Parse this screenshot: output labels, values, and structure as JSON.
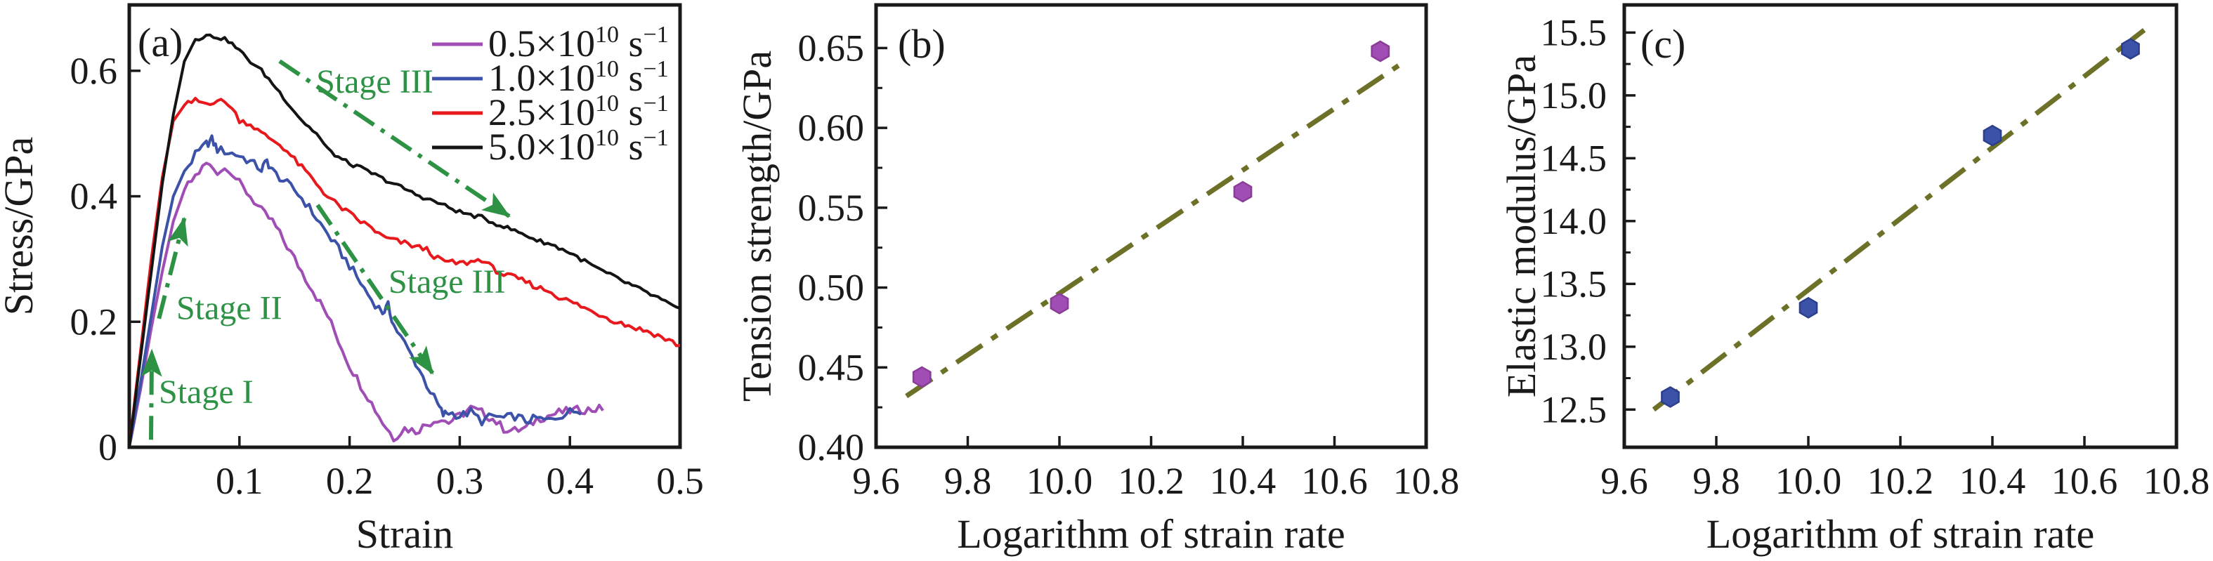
{
  "figure": {
    "description": "Three-panel materials figure: stress-strain curves at four strain rates, tension strength vs logarithm of strain rate, elastic modulus vs logarithm of strain rate",
    "text_color": "#1a1a1a",
    "annotation_color": "#2E9245",
    "fit_line_color": "#6D7127"
  },
  "chart_data": [
    {
      "id": "a",
      "type": "line",
      "panel_label": "(a)",
      "xlabel": "Strain",
      "ylabel": "Stress/GPa",
      "xlim": [
        0,
        0.5
      ],
      "ylim": [
        0,
        0.705
      ],
      "xtick_values": [
        0.1,
        0.2,
        0.3,
        0.4,
        0.5
      ],
      "xtick_labels": [
        "0.1",
        "0.2",
        "0.3",
        "0.4",
        "0.5"
      ],
      "ytick_values": [
        0,
        0.2,
        0.4,
        0.6
      ],
      "ytick_labels": [
        "0",
        "0.2",
        "0.4",
        "0.6"
      ],
      "grid": false,
      "legend_position": "top-right",
      "series": [
        {
          "name": "0.5e10 per s",
          "color": "#A04DB5",
          "legend_base": "0.5×10",
          "legend_exp": "10",
          "legend_unit": " s",
          "legend_unit_exp": "−1",
          "points": [
            [
              0,
              0
            ],
            [
              0.01,
              0.09
            ],
            [
              0.02,
              0.19
            ],
            [
              0.03,
              0.28
            ],
            [
              0.04,
              0.36
            ],
            [
              0.05,
              0.41
            ],
            [
              0.06,
              0.432
            ],
            [
              0.07,
              0.452
            ],
            [
              0.08,
              0.44
            ],
            [
              0.09,
              0.446
            ],
            [
              0.1,
              0.42
            ],
            [
              0.11,
              0.4
            ],
            [
              0.12,
              0.376
            ],
            [
              0.13,
              0.36
            ],
            [
              0.14,
              0.33
            ],
            [
              0.15,
              0.3
            ],
            [
              0.16,
              0.27
            ],
            [
              0.17,
              0.24
            ],
            [
              0.18,
              0.21
            ],
            [
              0.19,
              0.17
            ],
            [
              0.2,
              0.13
            ],
            [
              0.21,
              0.1
            ],
            [
              0.22,
              0.07
            ],
            [
              0.23,
              0.04
            ],
            [
              0.24,
              0.015
            ],
            [
              0.25,
              0.03
            ],
            [
              0.26,
              0.026
            ],
            [
              0.27,
              0.036
            ],
            [
              0.28,
              0.046
            ],
            [
              0.29,
              0.04
            ],
            [
              0.3,
              0.05
            ],
            [
              0.31,
              0.062
            ],
            [
              0.32,
              0.055
            ],
            [
              0.33,
              0.045
            ],
            [
              0.34,
              0.03
            ],
            [
              0.35,
              0.026
            ],
            [
              0.36,
              0.03
            ],
            [
              0.37,
              0.045
            ],
            [
              0.38,
              0.05
            ],
            [
              0.39,
              0.055
            ],
            [
              0.4,
              0.058
            ],
            [
              0.41,
              0.06
            ],
            [
              0.42,
              0.06
            ],
            [
              0.43,
              0.062
            ]
          ]
        },
        {
          "name": "1.0e10 per s",
          "color": "#3B52A8",
          "legend_base": "1.0×10",
          "legend_exp": "10",
          "legend_unit": " s",
          "legend_unit_exp": "−1",
          "points": [
            [
              0,
              0
            ],
            [
              0.01,
              0.1
            ],
            [
              0.02,
              0.21
            ],
            [
              0.03,
              0.32
            ],
            [
              0.04,
              0.4
            ],
            [
              0.05,
              0.44
            ],
            [
              0.06,
              0.465
            ],
            [
              0.07,
              0.483
            ],
            [
              0.075,
              0.49
            ],
            [
              0.08,
              0.475
            ],
            [
              0.09,
              0.47
            ],
            [
              0.1,
              0.465
            ],
            [
              0.11,
              0.455
            ],
            [
              0.12,
              0.443
            ],
            [
              0.125,
              0.456
            ],
            [
              0.13,
              0.44
            ],
            [
              0.14,
              0.425
            ],
            [
              0.15,
              0.41
            ],
            [
              0.16,
              0.39
            ],
            [
              0.17,
              0.365
            ],
            [
              0.18,
              0.34
            ],
            [
              0.19,
              0.315
            ],
            [
              0.2,
              0.29
            ],
            [
              0.21,
              0.262
            ],
            [
              0.22,
              0.235
            ],
            [
              0.23,
              0.215
            ],
            [
              0.235,
              0.225
            ],
            [
              0.24,
              0.195
            ],
            [
              0.25,
              0.165
            ],
            [
              0.26,
              0.135
            ],
            [
              0.27,
              0.1
            ],
            [
              0.28,
              0.068
            ],
            [
              0.285,
              0.052
            ],
            [
              0.29,
              0.056
            ],
            [
              0.3,
              0.05
            ],
            [
              0.31,
              0.056
            ],
            [
              0.32,
              0.042
            ],
            [
              0.33,
              0.05
            ],
            [
              0.34,
              0.046
            ],
            [
              0.35,
              0.05
            ],
            [
              0.36,
              0.042
            ],
            [
              0.37,
              0.046
            ],
            [
              0.38,
              0.042
            ],
            [
              0.39,
              0.05
            ],
            [
              0.4,
              0.056
            ],
            [
              0.41,
              0.06
            ]
          ]
        },
        {
          "name": "2.5e10 per s",
          "color": "#E8191D",
          "legend_base": "2.5×10",
          "legend_exp": "10",
          "legend_unit": " s",
          "legend_unit_exp": "−1",
          "points": [
            [
              0,
              0
            ],
            [
              0.01,
              0.15
            ],
            [
              0.02,
              0.3
            ],
            [
              0.03,
              0.43
            ],
            [
              0.04,
              0.52
            ],
            [
              0.05,
              0.545
            ],
            [
              0.06,
              0.552
            ],
            [
              0.07,
              0.548
            ],
            [
              0.08,
              0.553
            ],
            [
              0.09,
              0.548
            ],
            [
              0.1,
              0.522
            ],
            [
              0.11,
              0.515
            ],
            [
              0.12,
              0.5
            ],
            [
              0.13,
              0.49
            ],
            [
              0.14,
              0.478
            ],
            [
              0.15,
              0.458
            ],
            [
              0.16,
              0.44
            ],
            [
              0.17,
              0.42
            ],
            [
              0.18,
              0.4
            ],
            [
              0.19,
              0.385
            ],
            [
              0.2,
              0.372
            ],
            [
              0.21,
              0.36
            ],
            [
              0.22,
              0.35
            ],
            [
              0.23,
              0.335
            ],
            [
              0.24,
              0.33
            ],
            [
              0.25,
              0.325
            ],
            [
              0.26,
              0.32
            ],
            [
              0.27,
              0.315
            ],
            [
              0.28,
              0.3
            ],
            [
              0.29,
              0.295
            ],
            [
              0.3,
              0.293
            ],
            [
              0.31,
              0.295
            ],
            [
              0.32,
              0.3
            ],
            [
              0.33,
              0.285
            ],
            [
              0.34,
              0.275
            ],
            [
              0.35,
              0.27
            ],
            [
              0.36,
              0.264
            ],
            [
              0.37,
              0.255
            ],
            [
              0.38,
              0.25
            ],
            [
              0.39,
              0.24
            ],
            [
              0.4,
              0.232
            ],
            [
              0.41,
              0.225
            ],
            [
              0.42,
              0.216
            ],
            [
              0.43,
              0.21
            ],
            [
              0.44,
              0.202
            ],
            [
              0.45,
              0.196
            ],
            [
              0.46,
              0.19
            ],
            [
              0.47,
              0.185
            ],
            [
              0.48,
              0.178
            ],
            [
              0.49,
              0.17
            ],
            [
              0.5,
              0.162
            ]
          ]
        },
        {
          "name": "5.0e10 per s",
          "color": "#141414",
          "legend_base": "5.0×10",
          "legend_exp": "10",
          "legend_unit": " s",
          "legend_unit_exp": "−1",
          "points": [
            [
              0,
              0
            ],
            [
              0.01,
              0.14
            ],
            [
              0.02,
              0.28
            ],
            [
              0.03,
              0.42
            ],
            [
              0.04,
              0.53
            ],
            [
              0.05,
              0.615
            ],
            [
              0.06,
              0.65
            ],
            [
              0.07,
              0.656
            ],
            [
              0.08,
              0.654
            ],
            [
              0.09,
              0.648
            ],
            [
              0.1,
              0.632
            ],
            [
              0.11,
              0.615
            ],
            [
              0.12,
              0.6
            ],
            [
              0.13,
              0.58
            ],
            [
              0.14,
              0.558
            ],
            [
              0.15,
              0.535
            ],
            [
              0.16,
              0.515
            ],
            [
              0.17,
              0.5
            ],
            [
              0.18,
              0.475
            ],
            [
              0.19,
              0.462
            ],
            [
              0.2,
              0.452
            ],
            [
              0.21,
              0.445
            ],
            [
              0.22,
              0.437
            ],
            [
              0.23,
              0.428
            ],
            [
              0.24,
              0.42
            ],
            [
              0.25,
              0.412
            ],
            [
              0.26,
              0.403
            ],
            [
              0.27,
              0.396
            ],
            [
              0.28,
              0.39
            ],
            [
              0.29,
              0.382
            ],
            [
              0.3,
              0.375
            ],
            [
              0.31,
              0.37
            ],
            [
              0.32,
              0.366
            ],
            [
              0.33,
              0.358
            ],
            [
              0.34,
              0.352
            ],
            [
              0.35,
              0.345
            ],
            [
              0.36,
              0.338
            ],
            [
              0.37,
              0.33
            ],
            [
              0.38,
              0.325
            ],
            [
              0.39,
              0.318
            ],
            [
              0.4,
              0.31
            ],
            [
              0.41,
              0.3
            ],
            [
              0.42,
              0.29
            ],
            [
              0.43,
              0.28
            ],
            [
              0.44,
              0.272
            ],
            [
              0.45,
              0.263
            ],
            [
              0.46,
              0.255
            ],
            [
              0.47,
              0.246
            ],
            [
              0.48,
              0.238
            ],
            [
              0.49,
              0.228
            ],
            [
              0.5,
              0.218
            ]
          ]
        }
      ],
      "annotations": [
        {
          "text": "Stage I",
          "text_at": [
            0.0268,
            0.0705
          ],
          "arrow": [
            [
              0.0198,
              0.012
            ],
            [
              0.0205,
              0.155
            ]
          ]
        },
        {
          "text": "Stage II",
          "text_at": [
            0.0427,
            0.204
          ],
          "arrow": [
            [
              0.027,
              0.205
            ],
            [
              0.05,
              0.365
            ]
          ]
        },
        {
          "text": "Stage III",
          "text_at": [
            0.1697,
            0.5651
          ],
          "arrow": [
            [
              0.1365,
              0.6154
            ],
            [
              0.345,
              0.3682
            ]
          ]
        },
        {
          "text": "Stage III",
          "text_at": [
            0.2353,
            0.2462
          ],
          "arrow": [
            [
              0.1709,
              0.3861
            ],
            [
              0.2755,
              0.1175
            ]
          ]
        }
      ]
    },
    {
      "id": "b",
      "type": "scatter",
      "panel_label": "(b)",
      "xlabel": "Logarithm of strain rate",
      "ylabel": "Tension strength/GPa",
      "xlim": [
        9.6,
        10.8
      ],
      "ylim": [
        0.4,
        0.677
      ],
      "xtick_values": [
        9.6,
        9.8,
        10.0,
        10.2,
        10.4,
        10.6,
        10.8
      ],
      "xtick_labels": [
        "9.6",
        "9.8",
        "10.0",
        "10.2",
        "10.4",
        "10.6",
        "10.8"
      ],
      "ytick_values": [
        0.4,
        0.45,
        0.5,
        0.55,
        0.6,
        0.65
      ],
      "ytick_labels": [
        "0.40",
        "0.45",
        "0.50",
        "0.55",
        "0.60",
        "0.65"
      ],
      "y_minor_step": 0.025,
      "grid": false,
      "marker": "hexagon",
      "marker_color": "#A04DB5",
      "marker_edge": "#8A3D96",
      "points": [
        [
          9.7,
          0.444
        ],
        [
          10.0,
          0.49
        ],
        [
          10.4,
          0.56
        ],
        [
          10.7,
          0.648
        ]
      ],
      "fit_line": {
        "style": "dash-dot",
        "color": "#6D7127",
        "from": [
          9.666,
          0.432
        ],
        "to": [
          10.75,
          0.641
        ]
      }
    },
    {
      "id": "c",
      "type": "scatter",
      "panel_label": "(c)",
      "xlabel": "Logarithm of strain rate",
      "ylabel": "Elastic modulus/GPa",
      "xlim": [
        9.6,
        10.8
      ],
      "ylim": [
        12.2,
        15.72
      ],
      "xtick_values": [
        9.6,
        9.8,
        10.0,
        10.2,
        10.4,
        10.6,
        10.8
      ],
      "xtick_labels": [
        "9.6",
        "9.8",
        "10.0",
        "10.2",
        "10.4",
        "10.6",
        "10.8"
      ],
      "ytick_values": [
        12.5,
        13.0,
        13.5,
        14.0,
        14.5,
        15.0,
        15.5
      ],
      "ytick_labels": [
        "12.5",
        "13.0",
        "13.5",
        "14.0",
        "14.5",
        "15.0",
        "15.5"
      ],
      "y_minor_step": 0.25,
      "grid": false,
      "marker": "hexagon",
      "marker_color": "#3B52A8",
      "marker_edge": "#2C3F8C",
      "points": [
        [
          9.7,
          12.6
        ],
        [
          10.0,
          13.31
        ],
        [
          10.4,
          14.68
        ],
        [
          10.7,
          15.37
        ]
      ],
      "fit_line": {
        "style": "dash-dot",
        "color": "#6D7127",
        "from": [
          9.664,
          12.5
        ],
        "to": [
          10.73,
          15.52
        ]
      }
    }
  ]
}
